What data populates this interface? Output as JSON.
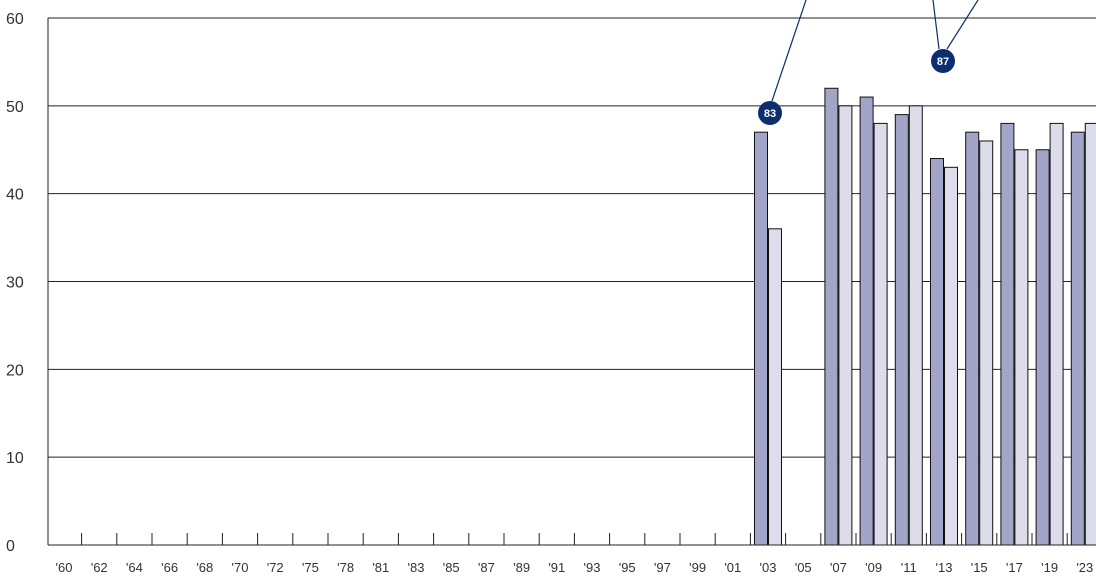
{
  "chart_data": {
    "type": "bar",
    "title": "",
    "xlabel": "",
    "ylabel": "",
    "ylim": [
      0,
      60
    ],
    "yticks": [
      "0",
      "10",
      "20",
      "30",
      "40",
      "50",
      "60"
    ],
    "categories": [
      "'60",
      "'62",
      "'64",
      "'66",
      "'68",
      "'70",
      "'72",
      "'75",
      "'78",
      "'81",
      "'83",
      "'85",
      "'87",
      "'89",
      "'91",
      "'93",
      "'95",
      "'97",
      "'99",
      "'01",
      "'03",
      "'05",
      "'07",
      "'09",
      "'11",
      "'13",
      "'15",
      "'17",
      "'19",
      "'23"
    ],
    "series": [
      {
        "values": [
          null,
          null,
          null,
          null,
          null,
          null,
          null,
          null,
          null,
          null,
          null,
          null,
          null,
          null,
          null,
          null,
          null,
          null,
          null,
          null,
          47,
          null,
          52,
          51,
          49,
          44,
          47,
          48,
          45,
          47
        ]
      },
      {
        "values": [
          null,
          null,
          null,
          null,
          null,
          null,
          null,
          null,
          null,
          null,
          null,
          null,
          null,
          null,
          null,
          null,
          null,
          null,
          null,
          null,
          36,
          null,
          50,
          48,
          50,
          43,
          46,
          45,
          48,
          48
        ]
      }
    ],
    "annotations": [
      {
        "label": "83",
        "category": "'03"
      },
      {
        "label": "87",
        "category": "'13"
      }
    ],
    "grid": true,
    "colors": {
      "series1": "#a3a5c8",
      "series2": "#dcdcea",
      "bar_stroke": "#111111",
      "grid": "#222222",
      "badge": "#0d2e6e"
    }
  }
}
